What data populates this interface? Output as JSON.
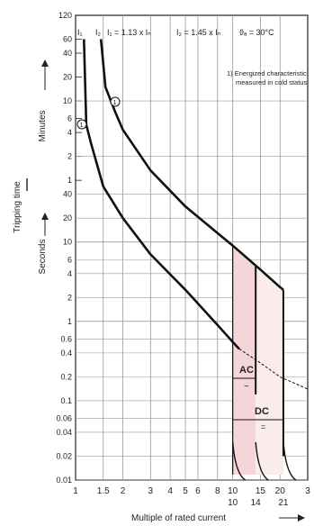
{
  "chart_data": {
    "type": "line",
    "x_scale": "log",
    "y_scale": "log",
    "xlim": [
      1,
      30
    ],
    "ylim": [
      0.01,
      7200
    ],
    "xlabel": "Multiple of rated current",
    "ylabel_main": "Tripping time",
    "ylabel_minutes": "Minutes",
    "ylabel_seconds": "Seconds",
    "header": {
      "i1_label": "I₁",
      "i2_label": "I₂",
      "rule1": "I₁ = 1.13 x Iₙ",
      "rule2": "I₂ = 1.45 x Iₙ",
      "temperature": "ϑₐ = 30°C"
    },
    "note": {
      "marker": "1",
      "line1": "1) Energized characteristic",
      "line2": "measured in cold status"
    },
    "minute_ticks": [
      "120",
      "60",
      "40",
      "20",
      "10",
      "6",
      "4",
      "2",
      "1"
    ],
    "second_ticks": [
      "40",
      "20",
      "10",
      "6",
      "4",
      "2",
      "1",
      "0.6",
      "0.4",
      "0.2",
      "0.1",
      "0.06",
      "0.04",
      "0.02",
      "0.01"
    ],
    "x_ticks": [
      "1",
      "1.5",
      "2",
      "3",
      "4",
      "5",
      "6",
      "8",
      "10",
      "15",
      "20",
      "3"
    ],
    "x_ticks_lower": [
      "10",
      "14",
      "21"
    ],
    "band_labels": {
      "ac": "AC",
      "dc": "DC"
    },
    "series": [
      {
        "points": [
          [
            1.13,
            3600
          ],
          [
            1.17,
            300
          ],
          [
            1.25,
            180
          ],
          [
            1.5,
            50
          ],
          [
            2,
            20
          ],
          [
            3,
            7
          ],
          [
            5,
            2.5
          ],
          [
            8,
            0.9
          ],
          [
            10,
            0.55
          ],
          [
            11,
            0.45
          ]
        ]
      },
      {
        "points": [
          [
            1.45,
            3600
          ],
          [
            1.55,
            900
          ],
          [
            1.8,
            420
          ],
          [
            2,
            260
          ],
          [
            3,
            80
          ],
          [
            5,
            28
          ],
          [
            8,
            13
          ],
          [
            10,
            9
          ],
          [
            15,
            4.5
          ],
          [
            20,
            2.7
          ],
          [
            21,
            2.5
          ]
        ]
      },
      {
        "points": [
          [
            11,
            0.45
          ],
          [
            15,
            0.3
          ],
          [
            20,
            0.2
          ],
          [
            30,
            0.14
          ]
        ]
      }
    ],
    "ac_range": [
      10,
      14
    ],
    "dc_range": [
      10,
      21
    ],
    "colors": {
      "curve": "#111111",
      "band": "#f4d6d8",
      "grid": "#9a9a9a"
    }
  }
}
